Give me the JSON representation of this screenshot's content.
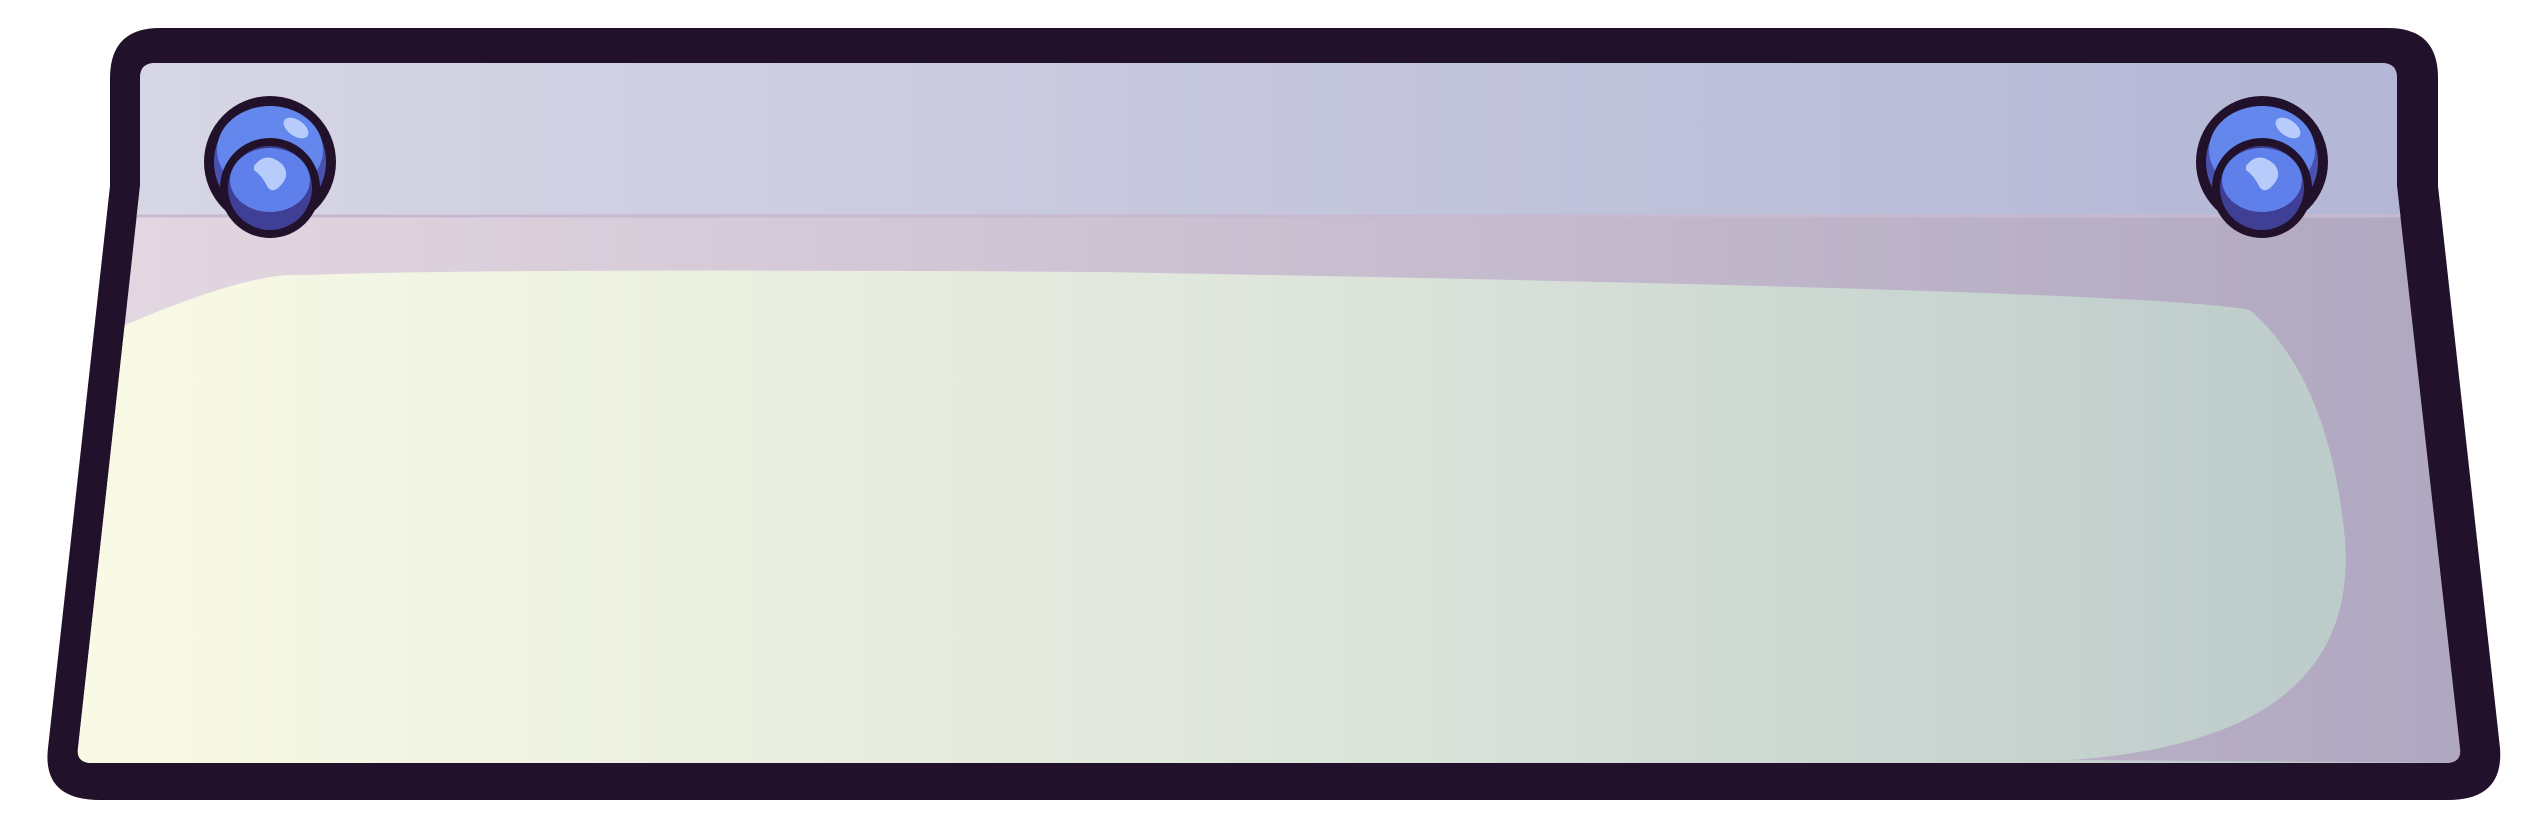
{
  "panel": {
    "colors": {
      "outline": "#22112a",
      "top_band_left": "#d9d8e6",
      "top_band_right": "#b1b5d4",
      "body_left": "#e5d9e2",
      "body_right": "#aea6bf",
      "glass_left": "#fafbe6",
      "glass_mid": "#dfe6dc",
      "glass_right": "#b8c8c8",
      "divider": "#c7b9d0"
    },
    "bolts": [
      {
        "position": "top-left",
        "icon": "bolt-icon"
      },
      {
        "position": "top-right",
        "icon": "bolt-icon"
      }
    ],
    "bolt_colors": {
      "outer": "#6487ed",
      "outer_shade": "#4a52b0",
      "inner": "#5f80ea",
      "inner_shade": "#3f3f96",
      "highlight": "#b7ccfb",
      "ring": "#22112a"
    }
  }
}
